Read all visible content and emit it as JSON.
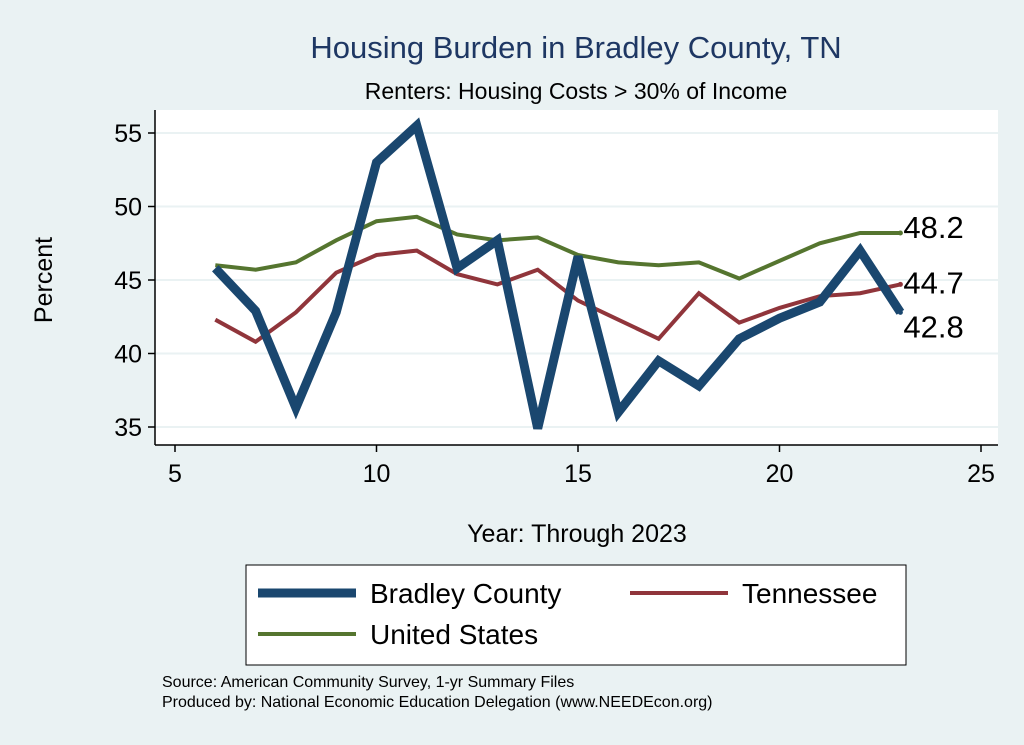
{
  "chart_data": {
    "type": "line",
    "title": "Housing Burden in Bradley County, TN",
    "subtitle": "Renters: Housing Costs > 30% of Income",
    "xlabel": "Year: Through 2023",
    "ylabel": "Percent",
    "xlim": [
      5,
      25
    ],
    "ylim": [
      34.5,
      56
    ],
    "xticks": [
      5,
      10,
      15,
      20,
      25
    ],
    "yticks": [
      35,
      40,
      45,
      50,
      55
    ],
    "grid": true,
    "legend_position": "bottom",
    "x": [
      6,
      7,
      8,
      9,
      10,
      11,
      12,
      13,
      14,
      15,
      16,
      17,
      18,
      19,
      20,
      21,
      22,
      23
    ],
    "series": [
      {
        "name": "Bradley County",
        "color": "#1a476f",
        "width": 9,
        "values": [
          45.8,
          42.9,
          36.3,
          42.8,
          53.0,
          55.5,
          45.8,
          47.7,
          34.9,
          46.6,
          36.0,
          39.5,
          37.8,
          41.0,
          42.4,
          43.5,
          47.0,
          42.8
        ],
        "end_label": "42.8"
      },
      {
        "name": "Tennessee",
        "color": "#90353b",
        "width": 4,
        "values": [
          42.3,
          40.8,
          42.8,
          45.5,
          46.7,
          47.0,
          45.4,
          44.7,
          45.7,
          43.6,
          42.3,
          41.0,
          44.1,
          42.1,
          43.1,
          43.9,
          44.1,
          44.7
        ],
        "end_label": "44.7"
      },
      {
        "name": "United States",
        "color": "#55752f",
        "width": 4,
        "values": [
          46.0,
          45.7,
          46.2,
          47.7,
          49.0,
          49.3,
          48.1,
          47.7,
          47.9,
          46.7,
          46.2,
          46.0,
          46.2,
          45.1,
          46.3,
          47.5,
          48.2,
          48.2
        ],
        "end_label": "48.2"
      }
    ],
    "notes": [
      "Source: American Community Survey, 1-yr Summary Files",
      "Produced by: National Economic Education Delegation (www.NEEDEcon.org)"
    ]
  }
}
